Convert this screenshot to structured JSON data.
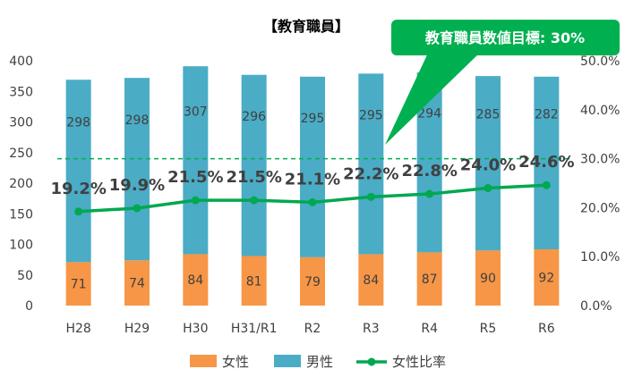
{
  "chart_data": {
    "type": "bar",
    "stacked": true,
    "title": "【教育職員】",
    "categories": [
      "H28",
      "H29",
      "H30",
      "H31/R1",
      "R2",
      "R3",
      "R4",
      "R5",
      "R6"
    ],
    "series": [
      {
        "name": "女性",
        "color": "#F79646",
        "values": [
          71,
          74,
          84,
          81,
          79,
          84,
          87,
          90,
          92
        ]
      },
      {
        "name": "男性",
        "color": "#4BACC6",
        "values": [
          298,
          298,
          307,
          296,
          295,
          295,
          294,
          285,
          282
        ]
      }
    ],
    "line_series": {
      "name": "女性比率",
      "color": "#00A850",
      "axis": "right",
      "values": [
        19.2,
        19.9,
        21.5,
        21.5,
        21.1,
        22.2,
        22.8,
        24.0,
        24.6
      ],
      "labels": [
        "19.2%",
        "19.9%",
        "21.5%",
        "21.5%",
        "21.1%",
        "22.2%",
        "22.8%",
        "24.0%",
        "24.6%"
      ]
    },
    "target": {
      "value": 30,
      "axis": "right",
      "label": "教育職員数値目標: 30%",
      "color": "#00B050"
    },
    "y_left": {
      "min": 0,
      "max": 400,
      "step": 50,
      "ticks": [
        "0",
        "50",
        "100",
        "150",
        "200",
        "250",
        "300",
        "350",
        "400"
      ]
    },
    "y_right": {
      "min": 0,
      "max": 50,
      "step": 10,
      "ticks": [
        "0.0%",
        "10.0%",
        "20.0%",
        "30.0%",
        "40.0%",
        "50.0%"
      ]
    },
    "legend_position": "bottom",
    "grid": false
  }
}
